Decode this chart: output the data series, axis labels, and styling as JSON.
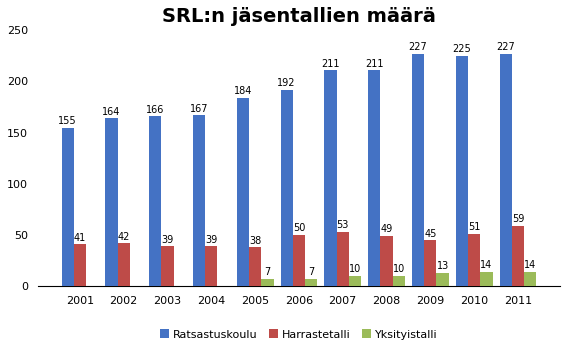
{
  "title": "SRL:n jäsentallien määrä",
  "years": [
    2001,
    2002,
    2003,
    2004,
    2005,
    2006,
    2007,
    2008,
    2009,
    2010,
    2011
  ],
  "ratsastuskoulu": [
    155,
    164,
    166,
    167,
    184,
    192,
    211,
    211,
    227,
    225,
    227
  ],
  "harrastetalli": [
    41,
    42,
    39,
    39,
    38,
    50,
    53,
    49,
    45,
    51,
    59
  ],
  "yksityistalli": [
    0,
    0,
    0,
    0,
    7,
    7,
    10,
    10,
    13,
    14,
    14
  ],
  "color_ratsastuskoulu": "#4472C4",
  "color_harrastetalli": "#BE4B48",
  "color_yksityistalli": "#9BBB59",
  "ylim": [
    0,
    250
  ],
  "yticks": [
    0,
    50,
    100,
    150,
    200,
    250
  ],
  "legend_labels": [
    "Ratsastuskoulu",
    "Harrastetalli",
    "Yksityistalli"
  ],
  "bar_width": 0.28,
  "title_fontsize": 14,
  "label_fontsize": 7,
  "tick_fontsize": 8,
  "legend_fontsize": 8,
  "background_color": "#FFFFFF"
}
